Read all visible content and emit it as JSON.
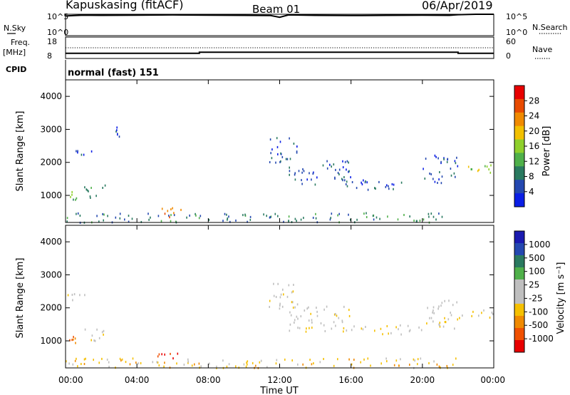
{
  "header": {
    "station": "Kapuskasing (fitACF)",
    "beam": "Beam 01",
    "date": "06/Apr/2019"
  },
  "colors": {
    "power": [
      "#0a1ee6",
      "#2448b0",
      "#2a7a60",
      "#4fb04a",
      "#8fd02c",
      "#f2c000",
      "#f08a00",
      "#e84a00",
      "#e80000"
    ],
    "velocity": [
      "#e80000",
      "#f05000",
      "#f08a00",
      "#f5c000",
      "#bfbfbf",
      "#bfbfbf",
      "#4fb04a",
      "#2a7a60",
      "#2448b0",
      "#1a1ab0"
    ]
  },
  "chart_data": [
    {
      "type": "line",
      "panel": "noise",
      "left_label": "N.Sky",
      "right_label": "N.Search",
      "left_ticks": [
        "10^5",
        "10^0"
      ],
      "right_ticks": [
        "10^5",
        "10^0"
      ],
      "series": [
        {
          "name": "N.Sky",
          "style": "solid",
          "x": [
            0,
            0.5,
            1,
            2,
            4,
            6,
            8,
            10,
            11.5,
            12,
            12.5,
            14,
            16,
            18,
            20,
            21.5,
            22,
            23,
            24
          ],
          "y": [
            4.6,
            4.7,
            4.8,
            4.75,
            4.8,
            4.85,
            4.8,
            4.75,
            4.7,
            4.3,
            4.85,
            4.75,
            4.7,
            4.75,
            4.8,
            4.75,
            4.9,
            5.0,
            5.0
          ]
        }
      ]
    },
    {
      "type": "line",
      "panel": "frequency",
      "left_label": "Freq.",
      "left_unit": "[MHz]",
      "right_label": "Nave",
      "left_ticks": [
        "18",
        "8"
      ],
      "right_ticks": [
        "60",
        "0"
      ],
      "series": [
        {
          "name": "Freq.",
          "style": "solid",
          "x": [
            0,
            7.5,
            7.5,
            22,
            22,
            24
          ],
          "y": [
            10.4,
            10.4,
            10.9,
            10.9,
            10.4,
            10.4
          ]
        },
        {
          "name": "Nave",
          "style": "dotted",
          "x": [
            0,
            24
          ],
          "y": [
            30,
            30
          ]
        }
      ]
    },
    {
      "type": "heatmap",
      "panel": "cpid",
      "label": "CPID",
      "text": "normal (fast) 151"
    },
    {
      "type": "heatmap",
      "panel": "power",
      "ylabel": "Slant Range [km]",
      "colorbar_label": "Power [dB]",
      "colorbar_ticks": [
        "4",
        "8",
        "12",
        "16",
        "20",
        "24",
        "28"
      ],
      "ylim": [
        180,
        4500
      ],
      "yticks": [
        1000,
        2000,
        3000,
        4000
      ],
      "xlim": [
        0,
        24
      ],
      "bands": [
        {
          "t0": 0.0,
          "t1": 22.0,
          "r0": 200,
          "r1": 500,
          "level": 2
        },
        {
          "t0": 0.0,
          "t1": 0.6,
          "r0": 850,
          "r1": 1150,
          "level": 3
        },
        {
          "t0": 0.0,
          "t1": 1.5,
          "r0": 2250,
          "r1": 2450,
          "level": 1
        },
        {
          "t0": 1.0,
          "t1": 2.2,
          "r0": 900,
          "r1": 1400,
          "level": 2
        },
        {
          "t0": 2.8,
          "t1": 3.0,
          "r0": 2800,
          "r1": 3100,
          "level": 1
        },
        {
          "t0": 5.0,
          "t1": 6.5,
          "r0": 350,
          "r1": 650,
          "level": 6
        },
        {
          "t0": 11.3,
          "t1": 13.0,
          "r0": 2000,
          "r1": 2800,
          "level": 1
        },
        {
          "t0": 12.5,
          "t1": 16.0,
          "r0": 1300,
          "r1": 2100,
          "level": 1
        },
        {
          "t0": 16.0,
          "t1": 20.0,
          "r0": 1200,
          "r1": 1500,
          "level": 1
        },
        {
          "t0": 20.0,
          "t1": 22.0,
          "r0": 1400,
          "r1": 2300,
          "level": 1
        },
        {
          "t0": 22.0,
          "t1": 24.0,
          "r0": 1700,
          "r1": 2000,
          "level": 4
        }
      ]
    },
    {
      "type": "heatmap",
      "panel": "velocity",
      "ylabel": "Slant Range [km]",
      "colorbar_label": "Velocity [m s⁻¹]",
      "colorbar_ticks": [
        "-1000",
        "-500",
        "-100",
        "-25",
        "25",
        "100",
        "500",
        "1000"
      ],
      "ylim": [
        180,
        4500
      ],
      "yticks": [
        1000,
        2000,
        3000,
        4000
      ],
      "xlim": [
        0,
        24
      ],
      "xticks": [
        "00:00",
        "04:00",
        "08:00",
        "12:00",
        "16:00",
        "20:00",
        "00:00"
      ],
      "xlabel": "Time UT",
      "bands": [
        {
          "t0": 0.0,
          "t1": 22.0,
          "r0": 200,
          "r1": 500,
          "level": 3
        },
        {
          "t0": 0.0,
          "t1": 0.6,
          "r0": 850,
          "r1": 1150,
          "level": 1
        },
        {
          "t0": 0.0,
          "t1": 1.5,
          "r0": 2250,
          "r1": 2450,
          "level": 4
        },
        {
          "t0": 1.0,
          "t1": 2.2,
          "r0": 900,
          "r1": 1400,
          "level": 4
        },
        {
          "t0": 5.0,
          "t1": 6.5,
          "r0": 350,
          "r1": 650,
          "level": 1
        },
        {
          "t0": 11.3,
          "t1": 13.0,
          "r0": 2000,
          "r1": 2800,
          "level": 4
        },
        {
          "t0": 12.5,
          "t1": 16.0,
          "r0": 1300,
          "r1": 2100,
          "level": 4
        },
        {
          "t0": 16.0,
          "t1": 20.0,
          "r0": 1200,
          "r1": 1500,
          "level": 4
        },
        {
          "t0": 20.0,
          "t1": 22.0,
          "r0": 1400,
          "r1": 2300,
          "level": 4
        },
        {
          "t0": 22.0,
          "t1": 24.0,
          "r0": 1700,
          "r1": 2000,
          "level": 4
        }
      ]
    }
  ]
}
